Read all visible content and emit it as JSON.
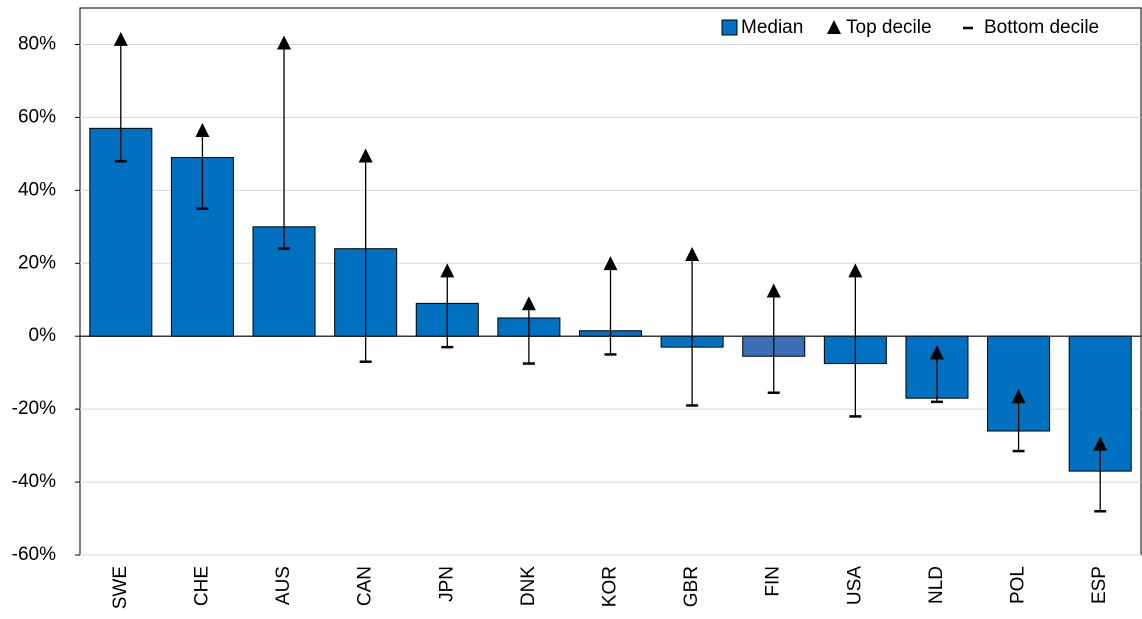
{
  "chart_data": {
    "type": "bar",
    "categories": [
      "SWE",
      "CHE",
      "AUS",
      "CAN",
      "JPN",
      "DNK",
      "KOR",
      "GBR",
      "FIN",
      "USA",
      "NLD",
      "POL",
      "ESP"
    ],
    "series": [
      {
        "name": "Median",
        "color": "#0070c0",
        "values": [
          57,
          49,
          30,
          24,
          9,
          5,
          1.5,
          -3,
          -5.5,
          -7.5,
          -17,
          -26,
          -37
        ]
      },
      {
        "name": "Top decile",
        "color": "#000000",
        "marker": "triangle",
        "values": [
          81,
          56,
          80,
          49,
          17.5,
          8.5,
          19.5,
          22,
          12,
          17.5,
          -5,
          -17,
          -30
        ]
      },
      {
        "name": "Bottom decile",
        "color": "#000000",
        "marker": "dash",
        "values": [
          48,
          35,
          24,
          -7,
          -3,
          -7.5,
          -5,
          -19,
          -15.5,
          -22,
          -18,
          -31.5,
          -48
        ]
      }
    ],
    "highlight": {
      "category": "FIN",
      "color": "#3a6fb5"
    },
    "ylim": [
      -60,
      90
    ],
    "yticks": [
      {
        "value": -60,
        "label": "-60%"
      },
      {
        "value": -40,
        "label": "-40%"
      },
      {
        "value": -20,
        "label": "-20%"
      },
      {
        "value": 0,
        "label": "0%"
      },
      {
        "value": 20,
        "label": "20%"
      },
      {
        "value": 40,
        "label": "40%"
      },
      {
        "value": 60,
        "label": "60%"
      },
      {
        "value": 80,
        "label": "80%"
      }
    ],
    "grid": true,
    "legend": "upper right"
  }
}
